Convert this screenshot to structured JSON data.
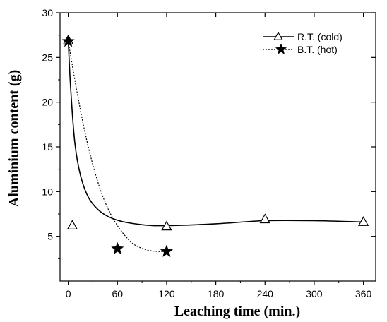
{
  "chart_data": {
    "type": "scatter",
    "title": "",
    "xlabel": "Leaching time (min.)",
    "ylabel": "Aluminium content (g)",
    "xlim": [
      -10,
      375
    ],
    "ylim": [
      0,
      30
    ],
    "x_ticks": [
      0,
      60,
      120,
      180,
      240,
      300,
      360
    ],
    "y_ticks": [
      5,
      10,
      15,
      20,
      25,
      30
    ],
    "grid": false,
    "legend_position": "top-right",
    "series": [
      {
        "name": "R.T. (cold)",
        "marker": "open-triangle",
        "line_style": "solid",
        "color": "#000000",
        "points": [
          {
            "x": 0,
            "y": 26.9
          },
          {
            "x": 5,
            "y": 6.2
          },
          {
            "x": 120,
            "y": 6.1
          },
          {
            "x": 240,
            "y": 6.9
          },
          {
            "x": 360,
            "y": 6.6
          }
        ],
        "fit_curve": [
          {
            "x": 0,
            "y": 26.9
          },
          {
            "x": 3,
            "y": 21.5
          },
          {
            "x": 8,
            "y": 15.5
          },
          {
            "x": 15,
            "y": 11.8
          },
          {
            "x": 25,
            "y": 9.3
          },
          {
            "x": 40,
            "y": 7.7
          },
          {
            "x": 60,
            "y": 6.8
          },
          {
            "x": 90,
            "y": 6.3
          },
          {
            "x": 120,
            "y": 6.2
          },
          {
            "x": 180,
            "y": 6.4
          },
          {
            "x": 240,
            "y": 6.75
          },
          {
            "x": 300,
            "y": 6.75
          },
          {
            "x": 360,
            "y": 6.6
          }
        ]
      },
      {
        "name": "B.T. (hot)",
        "marker": "filled-star",
        "line_style": "dotted",
        "color": "#000000",
        "points": [
          {
            "x": 0,
            "y": 26.8
          },
          {
            "x": 60,
            "y": 3.6
          },
          {
            "x": 120,
            "y": 3.3
          }
        ],
        "fit_curve": [
          {
            "x": 0,
            "y": 26.8
          },
          {
            "x": 10,
            "y": 21.5
          },
          {
            "x": 20,
            "y": 16.8
          },
          {
            "x": 30,
            "y": 13.0
          },
          {
            "x": 40,
            "y": 10.0
          },
          {
            "x": 50,
            "y": 7.8
          },
          {
            "x": 60,
            "y": 6.2
          },
          {
            "x": 70,
            "y": 5.0
          },
          {
            "x": 80,
            "y": 4.1
          },
          {
            "x": 95,
            "y": 3.5
          },
          {
            "x": 110,
            "y": 3.3
          },
          {
            "x": 120,
            "y": 3.3
          }
        ]
      }
    ]
  }
}
